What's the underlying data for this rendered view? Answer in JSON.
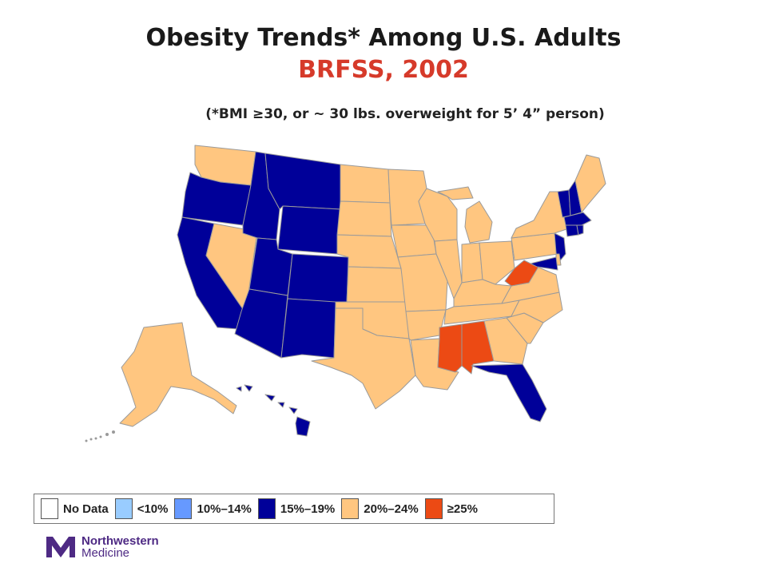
{
  "title": "Obesity Trends* Among U.S. Adults",
  "subtitle": "BRFSS, 2002",
  "note": "(*BMI ≥30, or ~ 30 lbs. overweight for 5’ 4” person)",
  "colors": {
    "no_data": "#ffffff",
    "lt10": "#99ccff",
    "r10_14": "#6699ff",
    "r15_19": "#000099",
    "r20_24": "#ffc680",
    "ge25": "#ec4a14",
    "border": "#9a9a9a",
    "title": "#1a1a1a",
    "subtitle": "#d63a2a",
    "brand": "#4e2a84"
  },
  "legend": [
    {
      "label": "No Data",
      "color": "#ffffff"
    },
    {
      "label": "<10%",
      "color": "#99ccff"
    },
    {
      "label": "10%–14%",
      "color": "#6699ff"
    },
    {
      "label": "15%–19%",
      "color": "#000099"
    },
    {
      "label": "20%–24%",
      "color": "#ffc680"
    },
    {
      "label": "≥25%",
      "color": "#ec4a14"
    }
  ],
  "state_categories": {
    "WA": "20%–24%",
    "OR": "15%–19%",
    "CA": "15%–19%",
    "NV": "20%–24%",
    "ID": "15%–19%",
    "MT": "15%–19%",
    "WY": "15%–19%",
    "UT": "15%–19%",
    "CO": "15%–19%",
    "AZ": "15%–19%",
    "NM": "15%–19%",
    "ND": "20%–24%",
    "SD": "20%–24%",
    "NE": "20%–24%",
    "KS": "20%–24%",
    "OK": "20%–24%",
    "TX": "20%–24%",
    "MN": "20%–24%",
    "IA": "20%–24%",
    "MO": "20%–24%",
    "AR": "20%–24%",
    "LA": "20%–24%",
    "WI": "20%–24%",
    "IL": "20%–24%",
    "MI": "20%–24%",
    "IN": "20%–24%",
    "OH": "20%–24%",
    "KY": "20%–24%",
    "TN": "20%–24%",
    "MS": "≥25%",
    "AL": "≥25%",
    "GA": "20%–24%",
    "FL": "15%–19%",
    "SC": "20%–24%",
    "NC": "20%–24%",
    "VA": "20%–24%",
    "WV": "≥25%",
    "PA": "20%–24%",
    "NY": "20%–24%",
    "ME": "20%–24%",
    "VT": "15%–19%",
    "NH": "15%–19%",
    "MA": "15%–19%",
    "CT": "15%–19%",
    "RI": "15%–19%",
    "NJ": "15%–19%",
    "DE": "20%–24%",
    "MD": "15%–19%",
    "AK": "20%–24%",
    "HI": "15%–19%"
  },
  "logo": {
    "line1": "Northwestern",
    "line2": "Medicine"
  }
}
